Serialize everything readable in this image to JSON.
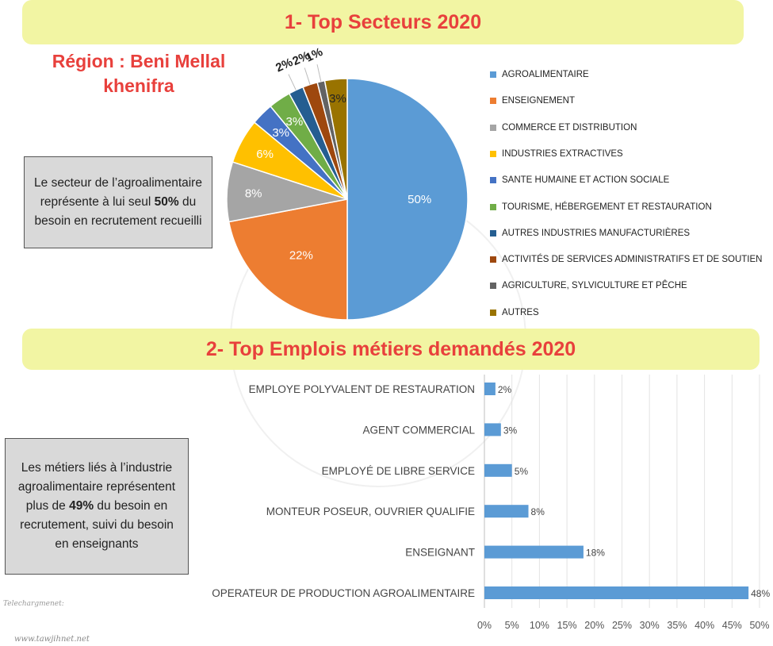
{
  "banners": {
    "sectors": "1- Top Secteurs 2020",
    "jobs": "2- Top Emplois métiers demandés 2020"
  },
  "region": {
    "line1": "Région : Beni Mellal",
    "line2": "khenifra"
  },
  "note_sectors": {
    "before": "Le secteur de l’agroalimentaire représente à lui seul ",
    "bold": "50%",
    "after": " du besoin en recrutement recueilli"
  },
  "note_jobs": {
    "before": "Les métiers liés à l’industrie agroalimentaire représentent plus de ",
    "bold": "49%",
    "after": " du besoin en recrutement, suivi du besoin en enseignants"
  },
  "credit": {
    "download": "Telechargmenet:",
    "url": "www.tawjihnet.net"
  },
  "chart_data": [
    {
      "type": "pie",
      "title": "1- Top Secteurs 2020",
      "categories": [
        "AGROALIMENTAIRE",
        "ENSEIGNEMENT",
        "COMMERCE ET DISTRIBUTION",
        "INDUSTRIES EXTRACTIVES",
        "SANTE HUMAINE ET ACTION SOCIALE",
        "TOURISME, HÉBERGEMENT ET RESTAURATION",
        "AUTRES INDUSTRIES MANUFACTURIÈRES",
        "ACTIVITÉS DE SERVICES ADMINISTRATIFS ET DE SOUTIEN",
        "AGRICULTURE, SYLVICULTURE ET PÊCHE",
        "AUTRES"
      ],
      "values": [
        50,
        22,
        8,
        6,
        3,
        3,
        2,
        2,
        1,
        3
      ],
      "labels": [
        "50%",
        "22%",
        "8%",
        "6%",
        "3%",
        "3%",
        "2%",
        "2%",
        "1%",
        "3%"
      ],
      "colors": [
        "#5b9bd5",
        "#ed7d31",
        "#a5a5a5",
        "#ffc000",
        "#4472c4",
        "#70ad47",
        "#255e91",
        "#9e480e",
        "#636363",
        "#997300"
      ],
      "legend_position": "right"
    },
    {
      "type": "bar",
      "orientation": "horizontal",
      "title": "2- Top Emplois métiers demandés 2020",
      "categories": [
        "EMPLOYE POLYVALENT DE RESTAURATION",
        "AGENT COMMERCIAL",
        "EMPLOYÉ DE LIBRE SERVICE",
        "MONTEUR POSEUR, OUVRIER QUALIFIE",
        "ENSEIGNANT",
        "OPERATEUR DE PRODUCTION AGROALIMENTAIRE"
      ],
      "values": [
        2,
        3,
        5,
        8,
        18,
        48
      ],
      "labels": [
        "2%",
        "3%",
        "5%",
        "8%",
        "18%",
        "48%"
      ],
      "xlim": [
        0,
        50
      ],
      "xticks": [
        "0%",
        "5%",
        "10%",
        "15%",
        "20%",
        "25%",
        "30%",
        "35%",
        "40%",
        "45%",
        "50%"
      ],
      "grid": true,
      "bar_color": "#5b9bd5"
    }
  ]
}
